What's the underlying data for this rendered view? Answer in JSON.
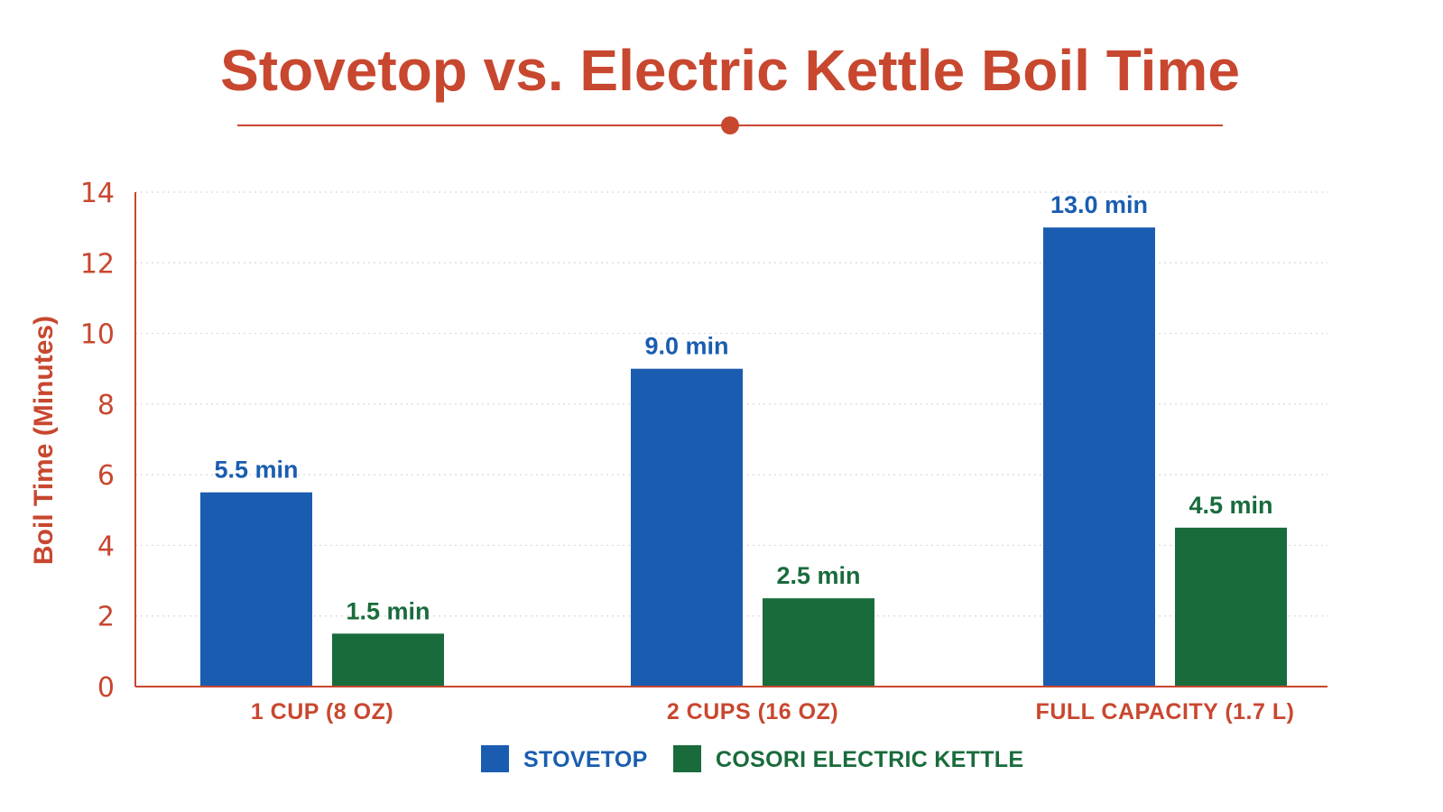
{
  "colors": {
    "accent": "#c8472f",
    "stovetop": "#1a5db0",
    "kettle": "#196b3c",
    "grid": "#d9d9d9"
  },
  "chart_data": {
    "type": "bar",
    "title": "Stovetop vs. Electric Kettle Boil Time",
    "ylabel": "Boil Time (Minutes)",
    "xlabel": "",
    "ylim": [
      0,
      14
    ],
    "yticks": [
      0,
      2,
      4,
      6,
      8,
      10,
      12,
      14
    ],
    "grid": true,
    "legend_position": "bottom-center",
    "categories": [
      "1 CUP (8 OZ)",
      "2 CUPS (16 OZ)",
      "FULL CAPACITY (1.7 L)"
    ],
    "series": [
      {
        "name": "STOVETOP",
        "values": [
          5.5,
          9.0,
          13.0
        ],
        "labels": [
          "5.5 min",
          "9.0 min",
          "13.0 min"
        ]
      },
      {
        "name": "COSORI ELECTRIC KETTLE",
        "values": [
          1.5,
          2.5,
          4.5
        ],
        "labels": [
          "1.5 min",
          "2.5 min",
          "4.5 min"
        ]
      }
    ]
  }
}
